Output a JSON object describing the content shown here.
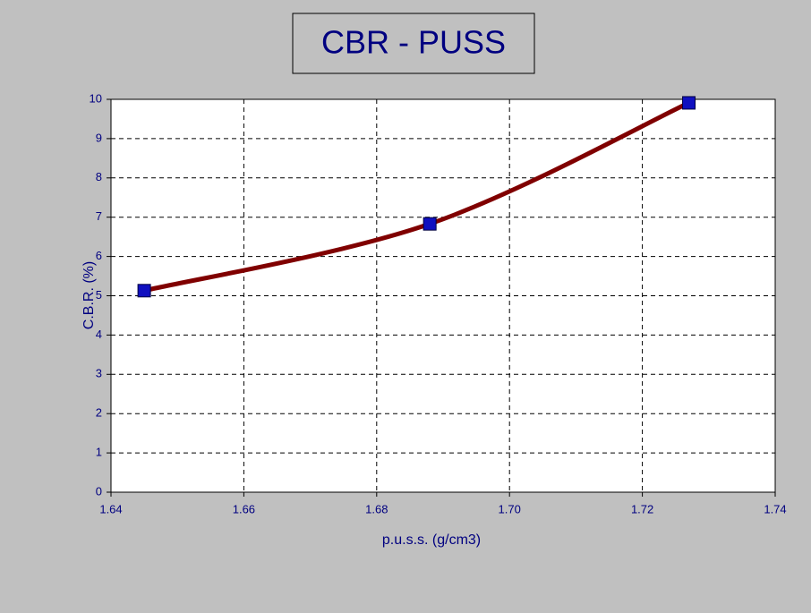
{
  "chart_data": {
    "type": "line",
    "title": "CBR - PUSS",
    "x_label": "p.u.s.s.  (g/cm3)",
    "y_label": "C.B.R. (%)",
    "x": [
      1.645,
      1.688,
      1.727
    ],
    "values": [
      5.13,
      6.83,
      9.91
    ],
    "color": "#800000",
    "marker_color": "#1010c0",
    "smooth": true,
    "xlim": [
      1.64,
      1.74
    ],
    "xticks": [
      1.64,
      1.66,
      1.68,
      {
        "value": 1.7,
        "label": "1.70"
      },
      1.72,
      1.74
    ],
    "ylim": [
      0,
      10
    ],
    "yticks": [
      0,
      1,
      2,
      3,
      4,
      5,
      6,
      7,
      8,
      9,
      10
    ],
    "grid": true
  }
}
